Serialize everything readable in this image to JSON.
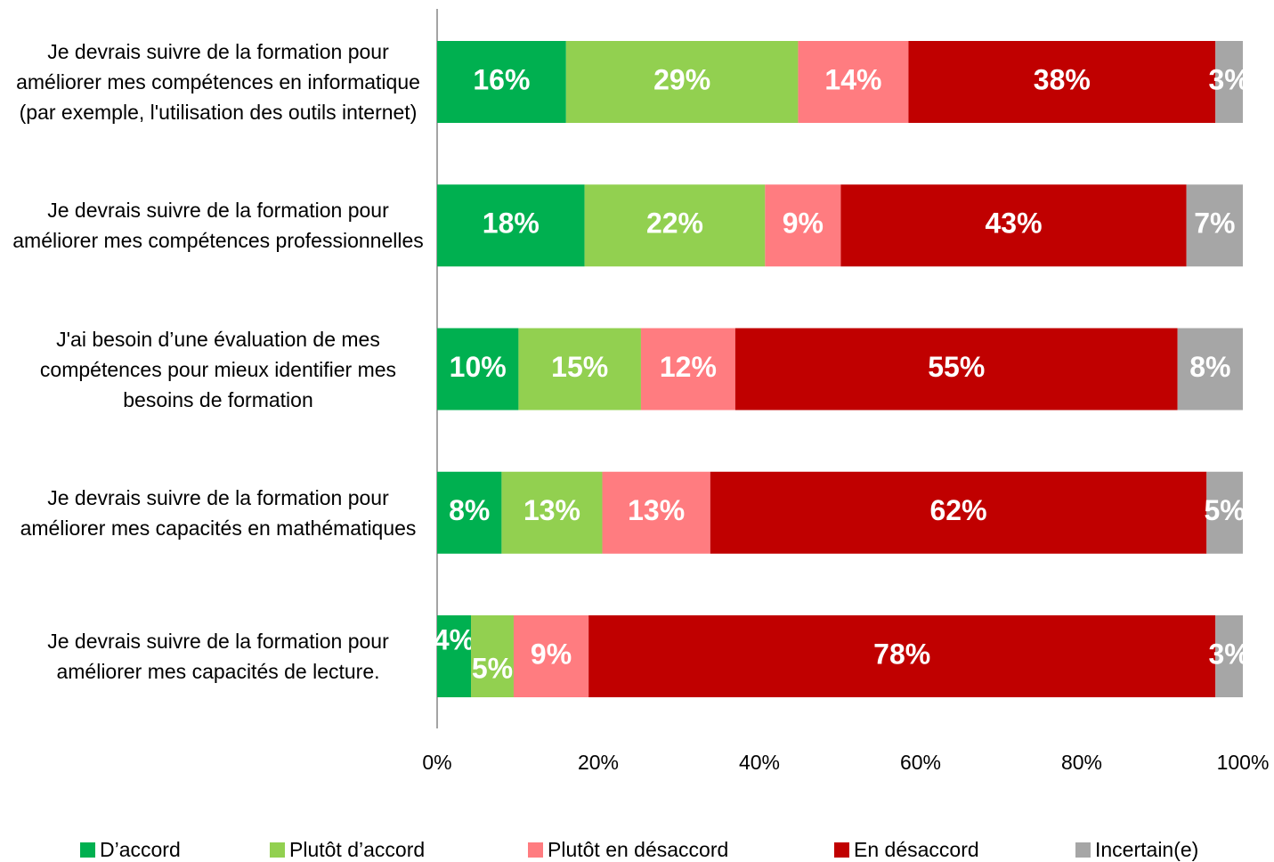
{
  "chart_data": {
    "type": "stacked-bar-horizontal",
    "categories": [
      "Je devrais suivre de la formation pour améliorer mes compétences en informatique (par exemple, l'utilisation des outils internet)",
      "Je devrais suivre de la formation pour améliorer mes compétences professionnelles",
      "J'ai besoin d’une évaluation de mes compétences pour mieux identifier mes besoins de formation",
      "Je devrais suivre de la formation pour améliorer mes capacités en mathématiques",
      "Je devrais suivre de la formation pour améliorer mes capacités de lecture."
    ],
    "series": [
      {
        "name": "D’accord",
        "color": "#00b050",
        "values": [
          16.0,
          18.3,
          10.1,
          8.0,
          4.2
        ],
        "value_labels": [
          "16%",
          "18%",
          "10%",
          "8%",
          "4%"
        ]
      },
      {
        "name": "Plutôt d’accord",
        "color": "#92d050",
        "values": [
          28.8,
          22.4,
          15.2,
          12.5,
          5.3
        ],
        "value_labels": [
          "29%",
          "22%",
          "15%",
          "13%",
          "5%"
        ]
      },
      {
        "name": "Plutôt en désaccord",
        "color": "#ff7c80",
        "values": [
          13.7,
          9.4,
          11.7,
          13.4,
          9.3
        ],
        "value_labels": [
          "14%",
          "9%",
          "12%",
          "13%",
          "9%"
        ]
      },
      {
        "name": "En désaccord",
        "color": "#c00000",
        "values": [
          38.1,
          42.9,
          54.9,
          61.6,
          77.8
        ],
        "value_labels": [
          "38%",
          "43%",
          "55%",
          "62%",
          "78%"
        ]
      },
      {
        "name": "Incertain(e)",
        "color": "#a6a6a6",
        "values": [
          3.4,
          7.0,
          8.1,
          4.5,
          3.4
        ],
        "value_labels": [
          "3%",
          "7%",
          "8%",
          "5%",
          "3%"
        ]
      }
    ],
    "xlim": [
      0,
      100
    ],
    "xticks": [
      {
        "value": 0,
        "label": "0%"
      },
      {
        "value": 20,
        "label": "20%"
      },
      {
        "value": 40,
        "label": "40%"
      },
      {
        "value": 60,
        "label": "60%"
      },
      {
        "value": 80,
        "label": "80%"
      },
      {
        "value": 100,
        "label": "100%"
      }
    ],
    "legend": "bottom"
  }
}
